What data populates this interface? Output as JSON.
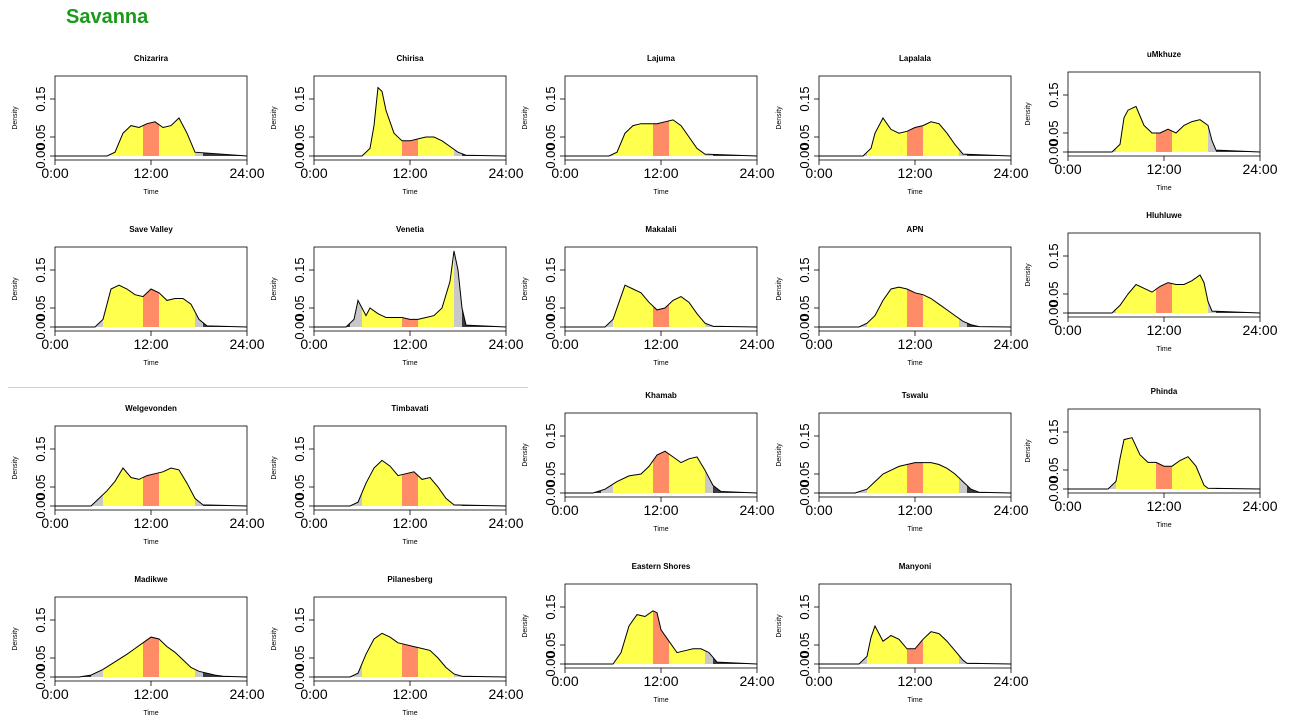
{
  "page": {
    "title": "Savanna"
  },
  "common": {
    "xlabel": "Time",
    "ylabel": "Density",
    "x_ticks": [
      "0:00",
      "12:00",
      "24:00"
    ],
    "y_ticks": [
      "0.00",
      "0.05",
      "0.15"
    ]
  },
  "colors": {
    "day": "#ffff4d",
    "midday": "#ff8c66",
    "twilight": "#c8c8c8",
    "night": "#3a3a3a",
    "title": "#1a9a1a"
  },
  "chart_data": [
    {
      "type": "area",
      "title": "Chizarira",
      "xlim": [
        0,
        24
      ],
      "ylim": [
        0,
        0.2
      ],
      "xlabel": "Time",
      "ylabel": "Density",
      "x": [
        0,
        6.5,
        7.5,
        8.5,
        9.5,
        10.5,
        11.5,
        12.5,
        13.5,
        14.5,
        15.5,
        16.5,
        17.5,
        24
      ],
      "values": [
        0,
        0,
        0.01,
        0.06,
        0.08,
        0.075,
        0.085,
        0.09,
        0.075,
        0.08,
        0.1,
        0.06,
        0.01,
        0
      ]
    },
    {
      "type": "area",
      "title": "Chirisa",
      "xlim": [
        0,
        24
      ],
      "ylim": [
        0,
        0.2
      ],
      "xlabel": "Time",
      "ylabel": "Density",
      "x": [
        0,
        6,
        7,
        7.5,
        8,
        8.5,
        9,
        10,
        11,
        12,
        13,
        14,
        15,
        16,
        17,
        18,
        19,
        24
      ],
      "values": [
        0,
        0,
        0.02,
        0.08,
        0.18,
        0.17,
        0.12,
        0.06,
        0.04,
        0.04,
        0.045,
        0.05,
        0.05,
        0.04,
        0.025,
        0.01,
        0.002,
        0
      ]
    },
    {
      "type": "area",
      "title": "Lajuma",
      "xlim": [
        0,
        24
      ],
      "ylim": [
        0,
        0.2
      ],
      "xlabel": "Time",
      "ylabel": "Density",
      "x": [
        0,
        5.5,
        6.5,
        7.5,
        8.5,
        9.5,
        10.5,
        11.5,
        12.5,
        13.5,
        14.5,
        15.5,
        16.5,
        17.5,
        24
      ],
      "values": [
        0,
        0,
        0.01,
        0.06,
        0.08,
        0.085,
        0.085,
        0.085,
        0.09,
        0.095,
        0.08,
        0.05,
        0.02,
        0.005,
        0
      ]
    },
    {
      "type": "area",
      "title": "Lapalala",
      "xlim": [
        0,
        24
      ],
      "ylim": [
        0,
        0.2
      ],
      "xlabel": "Time",
      "ylabel": "Density",
      "x": [
        0,
        5.5,
        6.5,
        7,
        8,
        9,
        10,
        11,
        12,
        13,
        14,
        15,
        16,
        17,
        18,
        24
      ],
      "values": [
        0,
        0,
        0.02,
        0.06,
        0.1,
        0.07,
        0.06,
        0.065,
        0.075,
        0.08,
        0.09,
        0.085,
        0.06,
        0.03,
        0.005,
        0
      ]
    },
    {
      "type": "area",
      "title": "uMkhuze",
      "xlim": [
        0,
        24
      ],
      "ylim": [
        0,
        0.2
      ],
      "xlabel": "Time",
      "ylabel": "Density",
      "x": [
        0,
        5.5,
        6.5,
        7,
        7.5,
        8.5,
        9.5,
        10.5,
        11.5,
        12.5,
        13.5,
        14.5,
        15.5,
        16.5,
        17.5,
        18,
        18.5,
        24
      ],
      "values": [
        0,
        0,
        0.02,
        0.09,
        0.11,
        0.12,
        0.07,
        0.05,
        0.05,
        0.06,
        0.05,
        0.07,
        0.08,
        0.085,
        0.07,
        0.03,
        0.005,
        0
      ]
    },
    {
      "type": "area",
      "title": "Save Valley",
      "xlim": [
        0,
        24
      ],
      "ylim": [
        0,
        0.2
      ],
      "xlabel": "Time",
      "ylabel": "Density",
      "x": [
        0,
        5,
        6,
        7,
        8,
        9,
        10,
        11,
        12,
        13,
        14,
        15,
        16,
        17,
        18,
        19,
        24
      ],
      "values": [
        0,
        0,
        0.02,
        0.1,
        0.11,
        0.1,
        0.085,
        0.08,
        0.1,
        0.09,
        0.07,
        0.075,
        0.075,
        0.06,
        0.02,
        0.003,
        0
      ]
    },
    {
      "type": "area",
      "title": "Venetia",
      "xlim": [
        0,
        24
      ],
      "ylim": [
        0,
        0.2
      ],
      "xlabel": "Time",
      "ylabel": "Density",
      "x": [
        0,
        4,
        5,
        5.5,
        6,
        6.5,
        7,
        8,
        9,
        10,
        11,
        12,
        13,
        14,
        15,
        16,
        17,
        17.5,
        18,
        18.5,
        19,
        24
      ],
      "values": [
        0,
        0,
        0.02,
        0.07,
        0.05,
        0.03,
        0.05,
        0.035,
        0.025,
        0.025,
        0.025,
        0.02,
        0.02,
        0.025,
        0.03,
        0.05,
        0.12,
        0.2,
        0.15,
        0.05,
        0.005,
        0
      ]
    },
    {
      "type": "area",
      "title": "Makalali",
      "xlim": [
        0,
        24
      ],
      "ylim": [
        0,
        0.2
      ],
      "xlabel": "Time",
      "ylabel": "Density",
      "x": [
        0,
        5,
        6,
        7,
        7.5,
        8.5,
        9.5,
        10.5,
        11.5,
        12.5,
        13.5,
        14.5,
        15.5,
        16.5,
        17.5,
        18.5,
        24
      ],
      "values": [
        0,
        0,
        0.02,
        0.08,
        0.11,
        0.1,
        0.09,
        0.065,
        0.045,
        0.05,
        0.07,
        0.08,
        0.065,
        0.035,
        0.01,
        0.002,
        0
      ]
    },
    {
      "type": "area",
      "title": "APN",
      "xlim": [
        0,
        24
      ],
      "ylim": [
        0,
        0.2
      ],
      "xlabel": "Time",
      "ylabel": "Density",
      "x": [
        0,
        5,
        6,
        7,
        8,
        9,
        10,
        11,
        12,
        13,
        14,
        15,
        16,
        17,
        18,
        19,
        20,
        24
      ],
      "values": [
        0,
        0,
        0.01,
        0.03,
        0.07,
        0.1,
        0.105,
        0.1,
        0.09,
        0.085,
        0.075,
        0.06,
        0.045,
        0.03,
        0.015,
        0.006,
        0.001,
        0
      ]
    },
    {
      "type": "area",
      "title": "Hluhluwe",
      "xlim": [
        0,
        24
      ],
      "ylim": [
        0,
        0.2
      ],
      "xlabel": "Time",
      "ylabel": "Density",
      "x": [
        0,
        5.5,
        6.5,
        7.5,
        8.5,
        9.5,
        10.5,
        11.5,
        12.5,
        13.5,
        14.5,
        15.5,
        16.5,
        17,
        17.5,
        18,
        24
      ],
      "values": [
        0,
        0,
        0.02,
        0.05,
        0.075,
        0.065,
        0.055,
        0.07,
        0.08,
        0.075,
        0.075,
        0.085,
        0.1,
        0.08,
        0.03,
        0.005,
        0
      ]
    },
    {
      "type": "area",
      "title": "Welgevonden",
      "xlim": [
        0,
        24
      ],
      "ylim": [
        0,
        0.2
      ],
      "xlabel": "Time",
      "ylabel": "Density",
      "x": [
        0,
        4.5,
        5.5,
        6.5,
        7.5,
        8.5,
        9.5,
        10.5,
        11.5,
        12.5,
        13.5,
        14.5,
        15.5,
        16.5,
        17.5,
        18.5,
        24
      ],
      "values": [
        0,
        0,
        0.02,
        0.04,
        0.065,
        0.1,
        0.075,
        0.07,
        0.08,
        0.085,
        0.09,
        0.1,
        0.095,
        0.06,
        0.02,
        0.003,
        0
      ]
    },
    {
      "type": "area",
      "title": "Timbavati",
      "xlim": [
        0,
        24
      ],
      "ylim": [
        0,
        0.2
      ],
      "xlabel": "Time",
      "ylabel": "Density",
      "x": [
        0,
        4.5,
        5.5,
        6.5,
        7.5,
        8.5,
        9.5,
        10.5,
        11.5,
        12.5,
        13.5,
        14.5,
        15.5,
        16.5,
        17.5,
        24
      ],
      "values": [
        0,
        0,
        0.01,
        0.06,
        0.1,
        0.12,
        0.105,
        0.08,
        0.085,
        0.09,
        0.07,
        0.075,
        0.05,
        0.02,
        0.003,
        0
      ]
    },
    {
      "type": "area",
      "title": "Khamab",
      "xlim": [
        0,
        24
      ],
      "ylim": [
        0,
        0.2
      ],
      "xlabel": "Time",
      "ylabel": "Density",
      "x": [
        0,
        3.5,
        5,
        6.5,
        8,
        9.5,
        10.5,
        11.5,
        12.5,
        13.5,
        14.5,
        15.5,
        16.5,
        17.5,
        18.5,
        19.5,
        24
      ],
      "values": [
        0,
        0,
        0.01,
        0.03,
        0.045,
        0.05,
        0.07,
        0.1,
        0.11,
        0.095,
        0.08,
        0.09,
        0.095,
        0.06,
        0.02,
        0.004,
        0
      ]
    },
    {
      "type": "area",
      "title": "Tswalu",
      "xlim": [
        0,
        24
      ],
      "ylim": [
        0,
        0.2
      ],
      "xlabel": "Time",
      "ylabel": "Density",
      "x": [
        0,
        4.5,
        6,
        7,
        8,
        9,
        10,
        11,
        12,
        13,
        14,
        15,
        16,
        17,
        18,
        19,
        20,
        24
      ],
      "values": [
        0,
        0,
        0.01,
        0.03,
        0.05,
        0.06,
        0.07,
        0.075,
        0.08,
        0.08,
        0.08,
        0.075,
        0.065,
        0.05,
        0.03,
        0.01,
        0.002,
        0
      ]
    },
    {
      "type": "area",
      "title": "Phinda",
      "xlim": [
        0,
        24
      ],
      "ylim": [
        0,
        0.2
      ],
      "xlabel": "Time",
      "ylabel": "Density",
      "x": [
        0,
        5,
        6,
        6.5,
        7,
        8,
        9,
        10,
        11,
        12,
        13,
        14,
        15,
        16,
        17,
        17.5,
        24
      ],
      "values": [
        0,
        0,
        0.02,
        0.08,
        0.13,
        0.135,
        0.09,
        0.07,
        0.07,
        0.06,
        0.06,
        0.075,
        0.085,
        0.06,
        0.01,
        0.002,
        0
      ]
    },
    {
      "type": "area",
      "title": "Madikwe",
      "xlim": [
        0,
        24
      ],
      "ylim": [
        0,
        0.2
      ],
      "xlabel": "Time",
      "ylabel": "Density",
      "x": [
        0,
        3,
        4.5,
        6,
        7.5,
        9,
        10,
        11,
        12,
        13,
        14,
        15,
        16,
        17,
        18,
        19,
        20,
        21,
        24
      ],
      "values": [
        0,
        0,
        0.005,
        0.02,
        0.04,
        0.06,
        0.075,
        0.09,
        0.105,
        0.1,
        0.08,
        0.065,
        0.045,
        0.025,
        0.015,
        0.01,
        0.005,
        0.002,
        0
      ]
    },
    {
      "type": "area",
      "title": "Pilanesberg",
      "xlim": [
        0,
        24
      ],
      "ylim": [
        0,
        0.2
      ],
      "xlabel": "Time",
      "ylabel": "Density",
      "x": [
        0,
        4.5,
        5.5,
        6.5,
        7.5,
        8.5,
        9.5,
        10.5,
        11.5,
        12.5,
        13.5,
        14.5,
        15.5,
        16.5,
        17.5,
        18.5,
        24
      ],
      "values": [
        0,
        0,
        0.01,
        0.06,
        0.1,
        0.115,
        0.105,
        0.09,
        0.085,
        0.08,
        0.075,
        0.07,
        0.05,
        0.025,
        0.008,
        0.002,
        0
      ]
    },
    {
      "type": "area",
      "title": "Eastern Shores",
      "xlim": [
        0,
        24
      ],
      "ylim": [
        0,
        0.2
      ],
      "xlabel": "Time",
      "ylabel": "Density",
      "x": [
        0,
        6,
        7,
        8,
        9,
        10,
        11,
        11.5,
        12,
        13,
        14,
        15,
        16,
        17,
        18,
        19,
        24
      ],
      "values": [
        0,
        0,
        0.03,
        0.1,
        0.13,
        0.125,
        0.14,
        0.135,
        0.09,
        0.06,
        0.03,
        0.035,
        0.04,
        0.04,
        0.03,
        0.005,
        0
      ]
    },
    {
      "type": "area",
      "title": "Manyoni",
      "xlim": [
        0,
        24
      ],
      "ylim": [
        0,
        0.2
      ],
      "xlabel": "Time",
      "ylabel": "Density",
      "x": [
        0,
        5,
        6,
        6.5,
        7,
        8,
        9,
        10,
        11,
        12,
        13,
        14,
        15,
        16,
        17,
        18,
        18.5,
        24
      ],
      "values": [
        0,
        0,
        0.02,
        0.07,
        0.1,
        0.06,
        0.075,
        0.065,
        0.04,
        0.04,
        0.065,
        0.085,
        0.08,
        0.06,
        0.035,
        0.01,
        0.002,
        0
      ]
    }
  ]
}
